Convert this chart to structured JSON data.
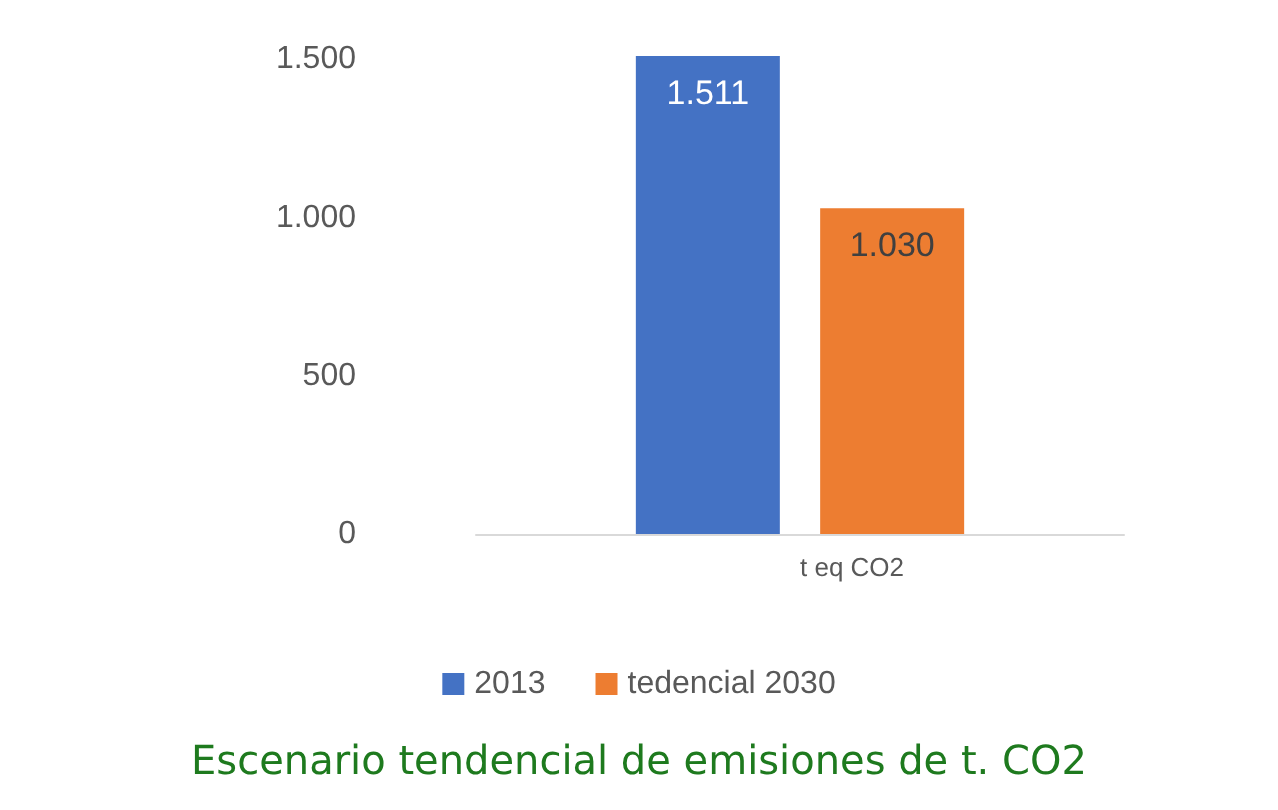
{
  "chart_data": {
    "type": "bar",
    "title": "Escenario tendencial de emisiones de t. CO2",
    "categories": [
      "t eq CO2"
    ],
    "series": [
      {
        "name": "2013",
        "color": "#4472c4",
        "values": [
          1511
        ],
        "value_labels": [
          "1.511"
        ]
      },
      {
        "name": "tedencial 2030",
        "color": "#ed7d31",
        "values": [
          1030
        ],
        "value_labels": [
          "1.030"
        ]
      }
    ],
    "ylim": [
      0,
      1511
    ],
    "yticks": [
      0,
      {
        "value": 500,
        "label": "500"
      },
      {
        "value": 1000,
        "label": "1.000"
      },
      {
        "value": 1500,
        "label": "1.500"
      }
    ],
    "grid": false,
    "legend": "bottom"
  }
}
